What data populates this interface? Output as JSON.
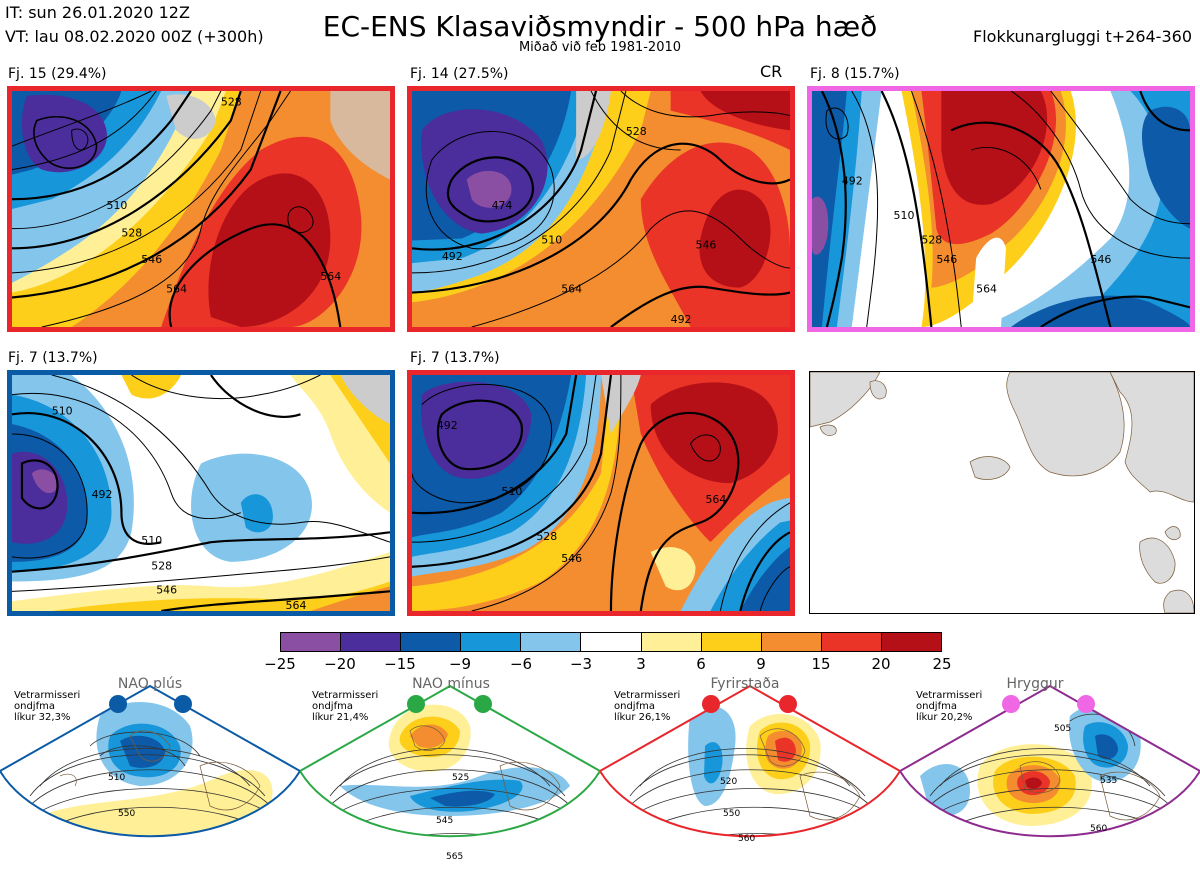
{
  "header": {
    "it": "IT: sun 26.01.2020 12Z",
    "vt": "VT: lau 08.02.2020 00Z  (+300h)",
    "title": "EC-ENS Klasaviðsmyndir - 500 hPa hæð",
    "subtitle": "Miðað við feb 1981-2010",
    "window": "Flokkunargluggi t+264-360"
  },
  "panels": [
    {
      "label": "Fj. 15 (29.4%)",
      "border": "#e8262b",
      "tag": "",
      "contours": [
        "510",
        "528",
        "546",
        "564",
        "564",
        "528"
      ]
    },
    {
      "label": "Fj. 14 (27.5%)",
      "border": "#e8262b",
      "tag": "CR",
      "contours": [
        "474",
        "492",
        "510",
        "528",
        "546",
        "564",
        "492"
      ]
    },
    {
      "label": "Fj. 8 (15.7%)",
      "border": "#ef67e5",
      "tag": "",
      "contours": [
        "492",
        "510",
        "528",
        "546",
        "564",
        "546"
      ]
    },
    {
      "label": "Fj. 7 (13.7%)",
      "border": "#0b5aa6",
      "tag": "",
      "contours": [
        "510",
        "492",
        "510",
        "528",
        "546",
        "564"
      ]
    },
    {
      "label": "Fj. 7 (13.7%)",
      "border": "#e8262b",
      "tag": "",
      "contours": [
        "492",
        "510",
        "528",
        "546",
        "564"
      ]
    }
  ],
  "colorbar": {
    "colors": [
      "#8a4ea3",
      "#4b2e9c",
      "#0d5aa8",
      "#1796d9",
      "#84c5ec",
      "#ffffff",
      "#fff097",
      "#fdcf1a",
      "#f48d2f",
      "#ea3428",
      "#b51018"
    ],
    "ticks": [
      "−25",
      "−20",
      "−15",
      "−9",
      "−6",
      "−3",
      "3",
      "6",
      "9",
      "15",
      "20",
      "25"
    ]
  },
  "regimes": [
    {
      "name": "NAO plús",
      "line": "#0b5aa6",
      "info": [
        "Vetrarmisseri",
        "ondjfma",
        "líkur 32,3%"
      ],
      "contours": [
        "510",
        "550"
      ]
    },
    {
      "name": "NAO mínus",
      "line": "#2aa845",
      "info": [
        "Vetrarmisseri",
        "ondjfma",
        "líkur 21,4%"
      ],
      "contours": [
        "525",
        "545",
        "565"
      ]
    },
    {
      "name": "Fyrirstaða",
      "line": "#e8262b",
      "info": [
        "Vetrarmisseri",
        "ondjfma",
        "líkur 26,1%"
      ],
      "contours": [
        "520",
        "550",
        "560"
      ]
    },
    {
      "name": "Hryggur",
      "line": "#8e2b8e",
      "info": [
        "Vetrarmisseri",
        "ondjfma",
        "líkur 20,2%"
      ],
      "contours": [
        "505",
        "535",
        "560"
      ]
    }
  ]
}
